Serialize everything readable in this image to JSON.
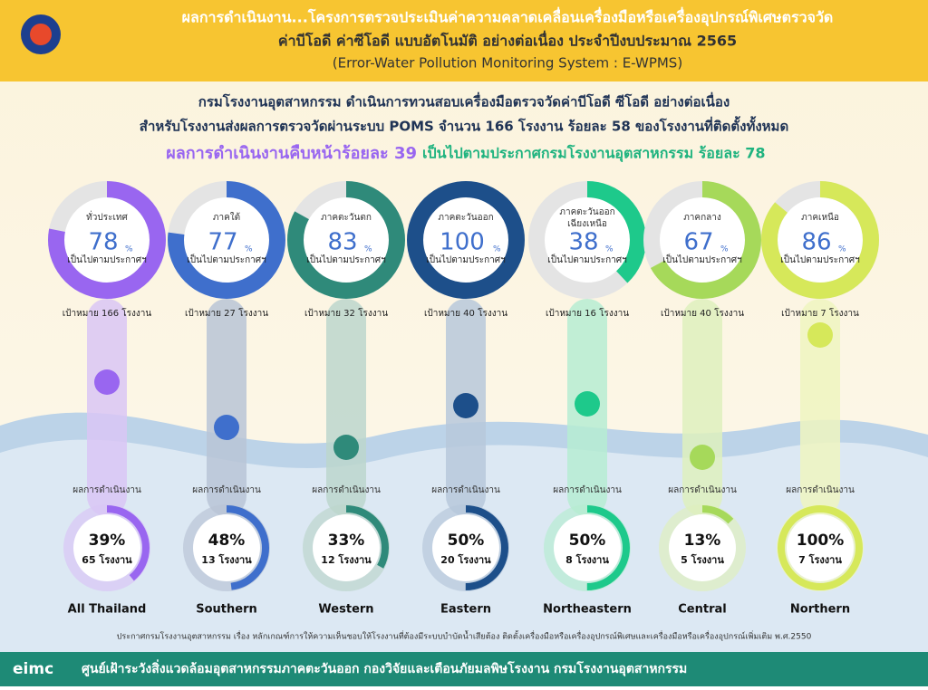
{
  "header": {
    "lines": [
      "ผลการดำเนินงาน...โครงการตรวจประเมินค่าความคลาดเคลื่อนเครื่องมือหรือเครื่องอุปกรณ์พิเศษตรวจวัด",
      "ค่าบีโอดี ค่าซีโอดี แบบอัตโนมัติ อย่างต่อเนื่อง ประจำปีงบประมาณ 2565",
      "(Error-Water Pollution Monitoring System : E-WPMS)"
    ]
  },
  "summary": {
    "lines": [
      "กรมโรงงานอุตสาหกรรม ดำเนินการทวนสอบเครื่องมือตรวจวัดค่าบีโอดี ซีโอดี อย่างต่อเนื่อง",
      "สำหรับโรงงานส่งผลการตรวจวัดผ่านระบบ POMS จำนวน 166 โรงงาน ร้อยละ 58 ของโรงงานที่ติดตั้งทั้งหมด"
    ],
    "progress_text": "ผลการดำเนินงานคืบหน้าร้อยละ 39",
    "compliance_text": "เป็นไปตามประกาศกรมโรงงานอุตสาหกรรม ร้อยละ 78"
  },
  "labels": {
    "compliance_caption": "เป็นไปตามประกาศฯ",
    "percent_sign": "%",
    "progress_caption": "ผลการดำเนินงาน"
  },
  "regions": [
    {
      "name_lines": [
        "ทั่วประเทศ"
      ],
      "compliance": 78,
      "target": "เป้าหมาย 166 โรงงาน",
      "progress": 39,
      "progress_label": "39%",
      "factories": "65 โรงงาน",
      "english": "All Thailand",
      "color": "#9966f0",
      "light": "#d9c6f5"
    },
    {
      "name_lines": [
        "ภาคใต้"
      ],
      "compliance": 77,
      "target": "เป้าหมาย 27 โรงงาน",
      "progress": 48,
      "progress_label": "48%",
      "factories": "13 โรงงาน",
      "english": "Southern",
      "color": "#3f6fcc",
      "light": "#b9c4d6"
    },
    {
      "name_lines": [
        "ภาคตะวันตก"
      ],
      "compliance": 83,
      "target": "เป้าหมาย 32 โรงงาน",
      "progress": 33,
      "progress_label": "33%",
      "factories": "12 โรงงาน",
      "english": "Western",
      "color": "#2f8a7a",
      "light": "#bcd6cc"
    },
    {
      "name_lines": [
        "ภาคตะวันออก"
      ],
      "compliance": 100,
      "target": "เป้าหมาย 40 โรงงาน",
      "progress": 50,
      "progress_label": "50%",
      "factories": "20 โรงงาน",
      "english": "Eastern",
      "color": "#1d4f8a",
      "light": "#b7c8da"
    },
    {
      "name_lines": [
        "ภาคตะวันออก",
        "เฉียงเหนือ"
      ],
      "compliance": 38,
      "target": "เป้าหมาย 16 โรงงาน",
      "progress": 50,
      "progress_label": "50%",
      "factories": "8 โรงงาน",
      "english": "Northeastern",
      "color": "#1ec98b",
      "light": "#b6ecd2"
    },
    {
      "name_lines": [
        "ภาคกลาง"
      ],
      "compliance": 67,
      "target": "เป้าหมาย 40 โรงงาน",
      "progress": 13,
      "progress_label": "13%",
      "factories": "5 โรงงาน",
      "english": "Central",
      "color": "#a6d95a",
      "light": "#def0bd"
    },
    {
      "name_lines": [
        "ภาคเหนือ"
      ],
      "compliance": 86,
      "target": "เป้าหมาย 7 โรงงาน",
      "progress": 100,
      "progress_label": "100%",
      "factories": "7 โรงงาน",
      "english": "Northern",
      "color": "#d6e85a",
      "light": "#eef5bf"
    }
  ],
  "footnote": "ประกาศกรมโรงงานอุตสาหกรรม เรื่อง หลักเกณฑ์การให้ความเห็นชอบให้โรงงานที่ต้องมีระบบบำบัดน้ำเสียต้อง ติดตั้งเครื่องมือหรือเครื่องอุปกรณ์พิเศษและเครื่องมือหรือเครื่องอุปกรณ์เพิ่มเติม พ.ศ.2550",
  "footer": {
    "logo": "eimc",
    "text": "ศูนย์เฝ้าระวังสิ่งแวดล้อมอุตสาหกรรมภาคตะวันออก กองวิจัยและเตือนภัยมลพิษโรงงาน กรมโรงงานอุตสาหกรรม"
  }
}
